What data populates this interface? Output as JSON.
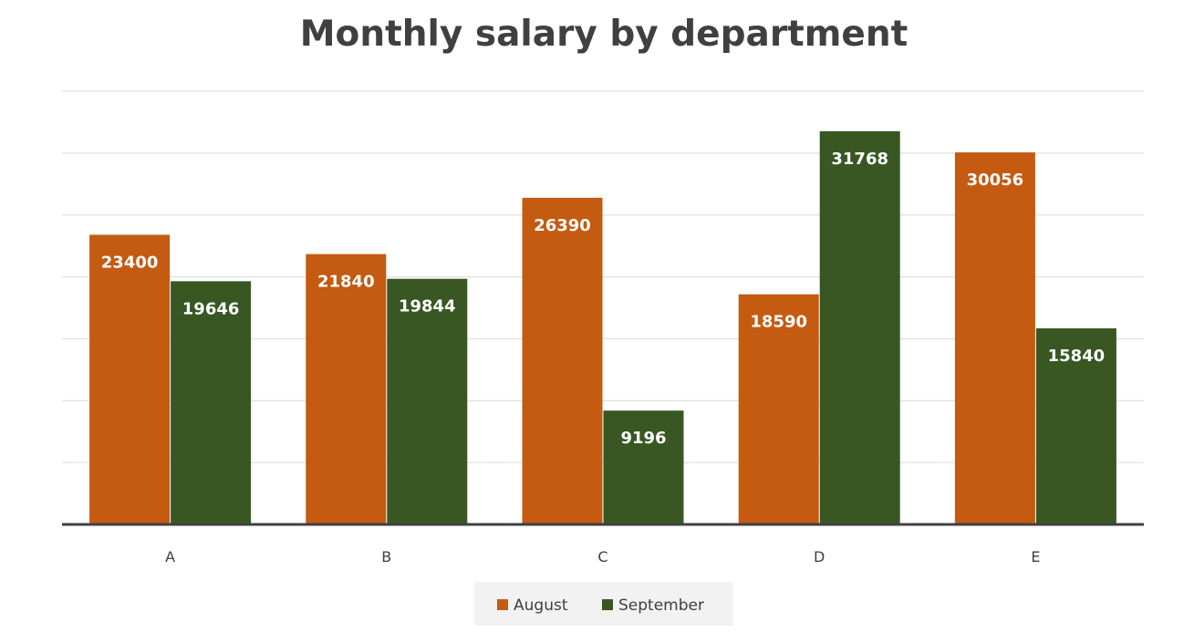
{
  "chart_data": {
    "type": "bar",
    "title": "Monthly salary by department",
    "xlabel": "",
    "ylabel": "",
    "categories": [
      "A",
      "B",
      "C",
      "D",
      "E"
    ],
    "series": [
      {
        "name": "August",
        "values": [
          23400,
          21840,
          26390,
          18590,
          30056
        ],
        "color": "#c55a11"
      },
      {
        "name": "September",
        "values": [
          19646,
          19844,
          9196,
          31768,
          15840
        ],
        "color": "#385723"
      }
    ],
    "ylim": [
      0,
      35000
    ],
    "y_grid_step": 5000,
    "y_tick_labels_shown": false,
    "grid": true,
    "data_labels": true,
    "data_label_color": "#ffffff",
    "legend_position": "bottom"
  }
}
